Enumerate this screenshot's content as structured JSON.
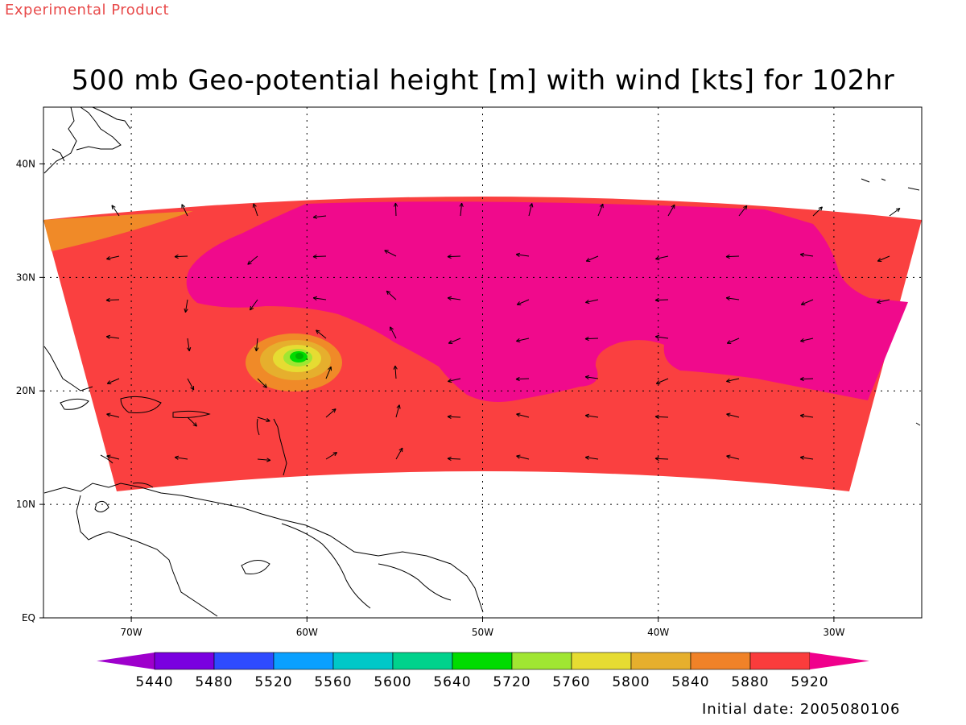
{
  "header": {
    "experimental_label": "Experimental Product",
    "title": "500 mb Geo-potential height [m] with wind [kts] for 102hr"
  },
  "footer": {
    "initial_date": "Initial date: 2005080106"
  },
  "map": {
    "lat_labels": [
      "40N",
      "30N",
      "20N",
      "10N",
      "EQ"
    ],
    "lon_labels": [
      "70W",
      "60W",
      "50W",
      "40W",
      "30W"
    ],
    "lat_values": [
      40,
      30,
      20,
      10,
      0
    ],
    "lon_values": [
      -70,
      -60,
      -50,
      -40,
      -30
    ],
    "extent": {
      "lon_min": -75,
      "lon_max": -25,
      "lat_min": 0,
      "lat_max": 45
    },
    "grid": "dotted",
    "feature": "low-height center near 23N 60.5W"
  },
  "colorbar": {
    "labels": [
      "5440",
      "5480",
      "5520",
      "5560",
      "5600",
      "5640",
      "5720",
      "5760",
      "5800",
      "5840",
      "5880",
      "5920"
    ],
    "colors": [
      "#9e00cc",
      "#7a00e0",
      "#2e4bff",
      "#0aa0ff",
      "#00c8c8",
      "#00d28c",
      "#00dc00",
      "#a0e632",
      "#e6dc32",
      "#e6af2d",
      "#f08228",
      "#fa3c3c",
      "#f0008c"
    ]
  },
  "colors": {
    "region_5880_5920": "#fa4040",
    "region_above_5920": "#f00a8c",
    "region_5840_5880": "#f08a28",
    "experimental_text": "#e84a4a"
  }
}
